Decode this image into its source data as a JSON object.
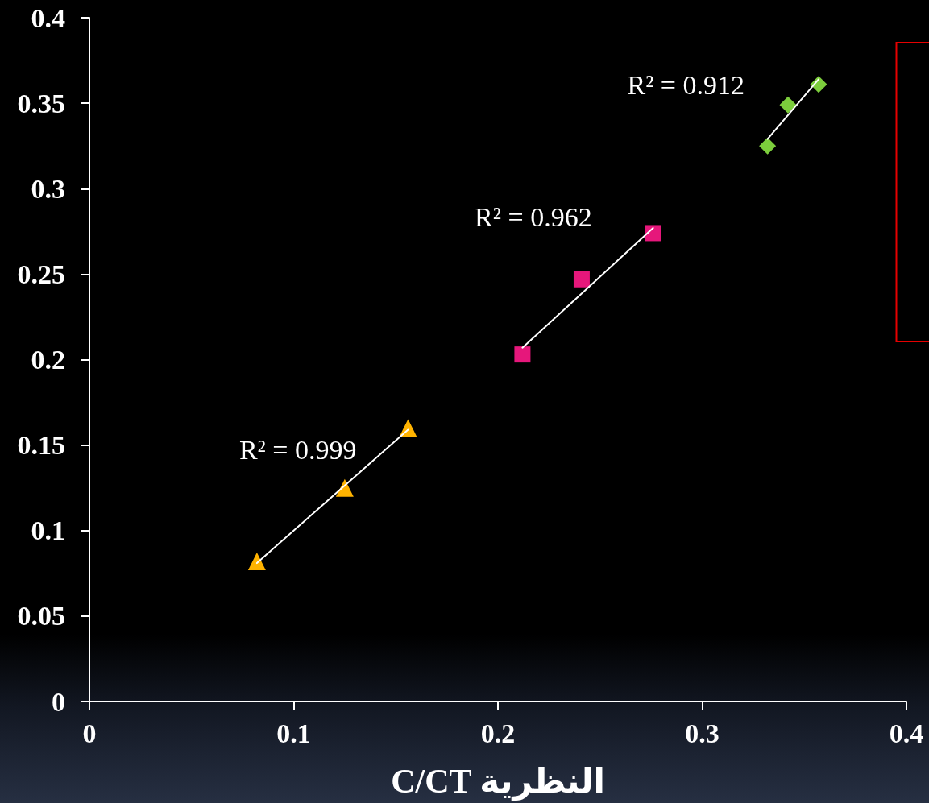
{
  "chart_data": {
    "type": "scatter",
    "xlabel": "C/CT النظرية",
    "xlim": [
      0,
      0.4
    ],
    "xticks": [
      0,
      0.1,
      0.2,
      0.3,
      0.4
    ],
    "ylim": [
      0,
      0.4
    ],
    "yticks": [
      0,
      0.05,
      0.1,
      0.15,
      0.2,
      0.25,
      0.3,
      0.35,
      0.4
    ],
    "grid": false,
    "series": [
      {
        "type": "scatter",
        "color": "#ffb300",
        "marker": "triangle",
        "x": [
          0.082,
          0.125,
          0.156
        ],
        "values": [
          0.082,
          0.125,
          0.16
        ]
      },
      {
        "type": "line",
        "color": "#ffffff",
        "marker": "none",
        "line_style": "solid",
        "x": [
          0.082,
          0.156
        ],
        "values": [
          0.081,
          0.159
        ]
      },
      {
        "type": "scatter",
        "color": "#e6177b",
        "marker": "square",
        "x": [
          0.212,
          0.241,
          0.276
        ],
        "values": [
          0.203,
          0.247,
          0.274
        ]
      },
      {
        "type": "line",
        "color": "#ffffff",
        "marker": "none",
        "line_style": "solid",
        "x": [
          0.212,
          0.276
        ],
        "values": [
          0.207,
          0.277
        ]
      },
      {
        "type": "scatter",
        "color": "#7ccd3c",
        "marker": "diamond",
        "x": [
          0.332,
          0.342,
          0.357
        ],
        "values": [
          0.325,
          0.349,
          0.361
        ]
      },
      {
        "type": "line",
        "color": "#ffffff",
        "marker": "none",
        "line_style": "solid",
        "x": [
          0.332,
          0.357
        ],
        "values": [
          0.329,
          0.364
        ]
      }
    ],
    "annotations": [
      "R² = 0.999",
      "R² = 0.962",
      "R² = 0.912"
    ]
  }
}
